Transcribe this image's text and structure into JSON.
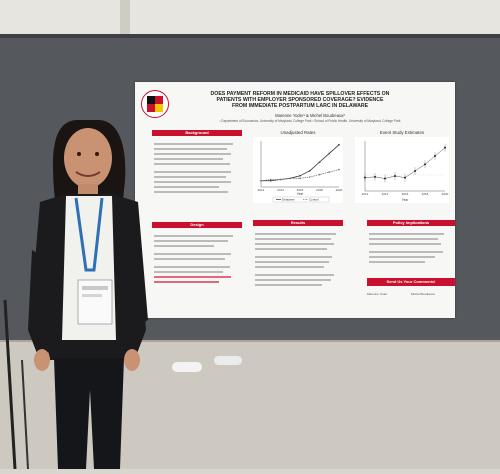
{
  "poster": {
    "title": "DOES PAYMENT REFORM IN MEDICAID HAVE SPILLOVER EFFECTS ON\nPATIENTS WITH EMPLOYER SPONSORED COVERAGE? EVIDENCE\nFROM IMMEDIATE POSTPARTUM LARC IN DELAWARE",
    "authors": "Marenne Yoder¹ & Michel Boudreaux²",
    "affiliations": "¹ Department of Economics, University of Maryland, College Park ² School of Public Health, University of Maryland, College Park",
    "sections": {
      "background": "Background",
      "design": "Design",
      "results": "Results",
      "policy": "Policy Implications",
      "closing": "Send Us Your Comments!"
    },
    "charts": {
      "left_title": "Unadjusted Rates",
      "right_title": "Event Study Estimates",
      "year_label": "Year",
      "left_ticks": [
        "2012",
        "2014",
        "2016",
        "2018",
        "2020"
      ],
      "right_ticks": [
        "2012",
        "2014",
        "2016",
        "2018",
        "2020"
      ],
      "legend_a": "Delaware",
      "legend_b": "Control"
    },
    "footer_names": [
      "Marenne Yoder",
      "Michel Boudreaux"
    ]
  },
  "chart_data": [
    {
      "type": "line",
      "title": "Unadjusted Rates",
      "xlabel": "Year",
      "x": [
        2012,
        2013,
        2014,
        2015,
        2016,
        2017,
        2018,
        2019,
        2020
      ],
      "series": [
        {
          "name": "Delaware",
          "values": [
            1.0,
            1.0,
            1.1,
            1.2,
            1.4,
            1.8,
            2.5,
            3.2,
            3.9
          ]
        },
        {
          "name": "Control",
          "values": [
            1.0,
            1.1,
            1.1,
            1.2,
            1.2,
            1.3,
            1.5,
            1.7,
            1.9
          ]
        }
      ]
    },
    {
      "type": "scatter",
      "title": "Event Study Estimates",
      "xlabel": "Year",
      "x": [
        2012,
        2013,
        2014,
        2015,
        2016,
        2017,
        2018,
        2019,
        2020
      ],
      "series": [
        {
          "values": [
            0.0,
            0.05,
            -0.05,
            0.1,
            0.0,
            0.4,
            0.8,
            1.3,
            1.8
          ]
        }
      ]
    }
  ]
}
